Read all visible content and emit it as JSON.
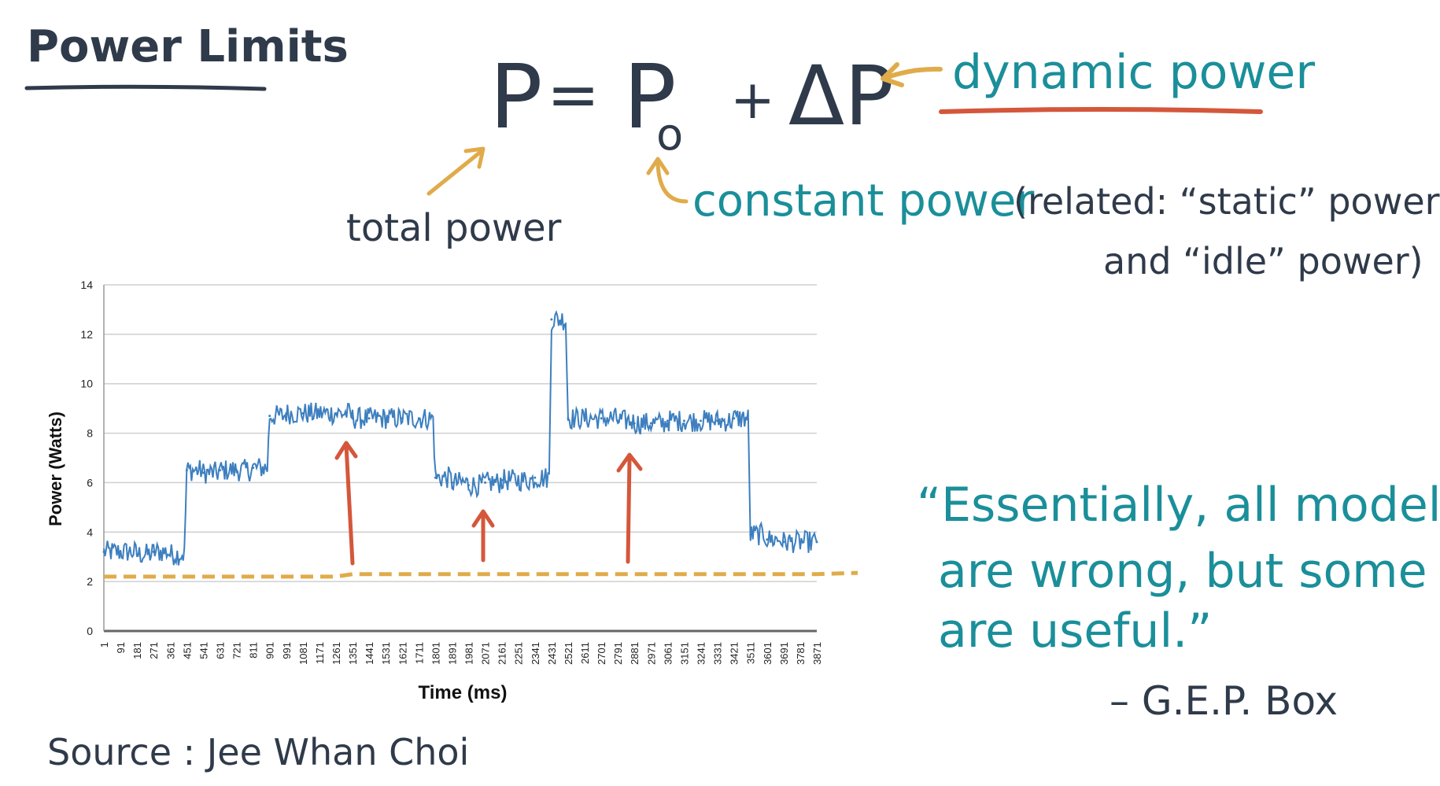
{
  "colors": {
    "ink": "#2f3a4a",
    "teal": "#1a8f9a",
    "orange": "#e0ab4a",
    "red": "#d4573b",
    "series": "#3d7fbf",
    "grid": "#cfcfcf"
  },
  "header": {
    "title": "Power Limits"
  },
  "equation": {
    "lhs": "P",
    "equals": "=",
    "p0_base": "P",
    "p0_sub": "o",
    "plus": "+",
    "delta": "ΔP"
  },
  "annotations": {
    "dynamic_power": "dynamic power",
    "total_power": "total power",
    "constant_power": "constant power",
    "related_line1": "(related: “static” power",
    "related_line2": "and “idle” power)"
  },
  "quote": {
    "line1": "“Essentially, all models",
    "line2": "are wrong, but some",
    "line3": "are useful.”",
    "attribution": "– G.E.P. Box"
  },
  "source": {
    "text": "Source : Jee Whan Choi"
  },
  "chart_data": {
    "type": "line",
    "title": "",
    "xlabel": "Time (ms)",
    "ylabel": "Power (Watts)",
    "ylim": [
      0,
      14
    ],
    "yticks": [
      0,
      2,
      4,
      6,
      8,
      10,
      12,
      14
    ],
    "grid": true,
    "x": [
      "1",
      "91",
      "181",
      "271",
      "361",
      "451",
      "541",
      "631",
      "721",
      "811",
      "901",
      "991",
      "1081",
      "1171",
      "1261",
      "1351",
      "1441",
      "1531",
      "1621",
      "1711",
      "1801",
      "1891",
      "1981",
      "2071",
      "2161",
      "2251",
      "2341",
      "2431",
      "2521",
      "2611",
      "2701",
      "2791",
      "2881",
      "2971",
      "3061",
      "3151",
      "3241",
      "3331",
      "3421",
      "3511",
      "3601",
      "3691",
      "3781",
      "3871"
    ],
    "series": [
      {
        "values": [
          3.2,
          3.2,
          3.1,
          3.2,
          3.1,
          6.5,
          6.4,
          6.5,
          6.5,
          6.6,
          8.7,
          8.8,
          8.8,
          8.8,
          8.8,
          8.6,
          8.6,
          8.6,
          8.6,
          8.6,
          6.2,
          6.0,
          5.9,
          6.0,
          6.1,
          6.1,
          6.2,
          12.6,
          8.6,
          8.6,
          8.6,
          8.5,
          8.4,
          8.4,
          8.5,
          8.5,
          8.5,
          8.5,
          8.6,
          3.9,
          3.7,
          3.6,
          3.6,
          3.6
        ]
      },
      {
        "values": [
          2.2,
          2.2,
          2.2,
          2.2,
          2.2,
          2.2,
          2.2,
          2.2,
          2.2,
          2.2,
          2.2,
          2.2,
          2.2,
          2.2,
          2.2,
          2.3,
          2.3,
          2.3,
          2.3,
          2.3,
          2.3,
          2.3,
          2.3,
          2.3,
          2.3,
          2.3,
          2.3,
          2.3,
          2.3,
          2.3,
          2.3,
          2.3,
          2.3,
          2.3,
          2.3,
          2.3,
          2.3,
          2.3,
          2.3,
          2.3,
          2.3,
          2.3,
          2.3,
          2.3
        ]
      }
    ]
  }
}
